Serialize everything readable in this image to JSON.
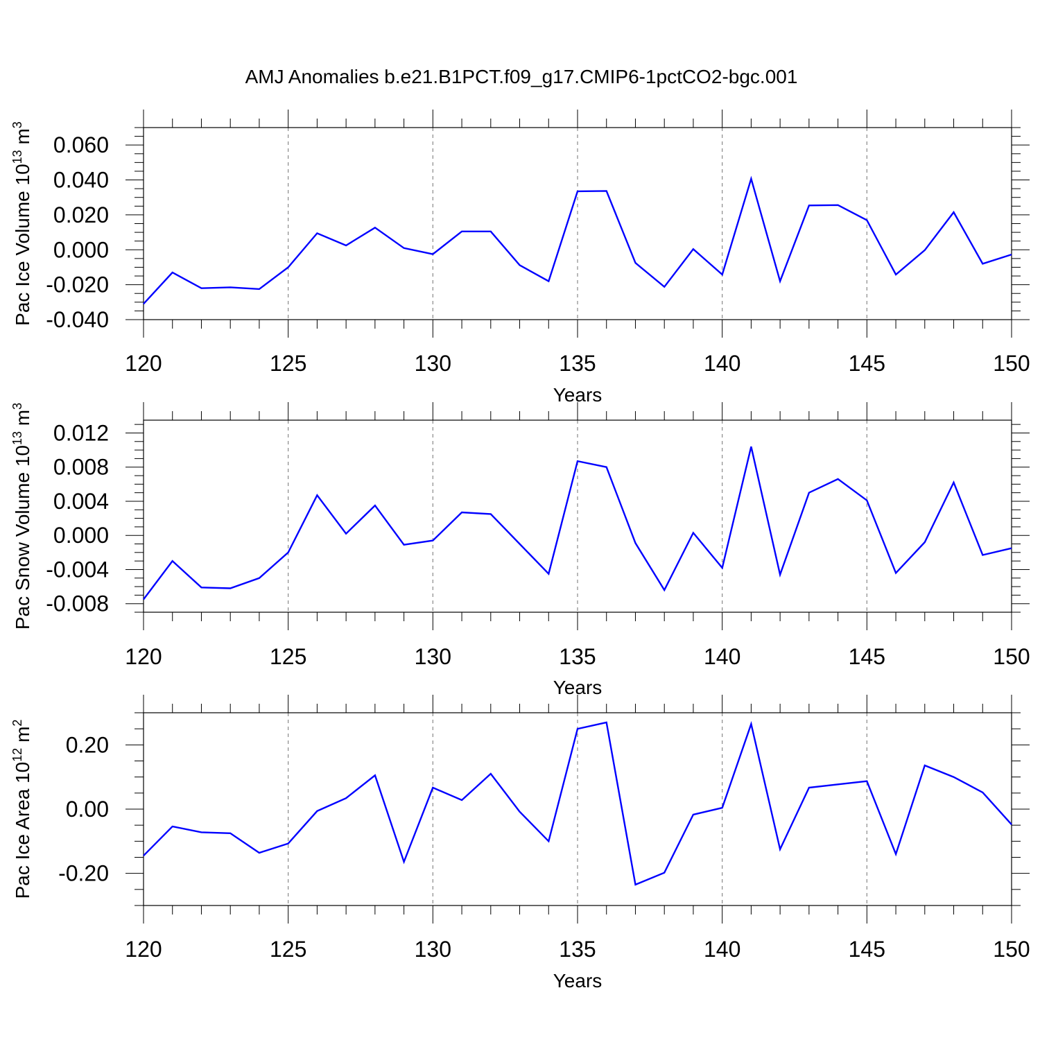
{
  "figure": {
    "title": "AMJ Anomalies b.e21.B1PCT.f09_g17.CMIP6-1pctCO2-bgc.001",
    "line_color": "#0000ff"
  },
  "chart_data": [
    {
      "type": "line",
      "xlabel": "Years",
      "ylabel": "Pac Ice Volume 10",
      "ylabel_sup": "13",
      "ylabel_unit": " m",
      "ylabel_unit_sup": "3",
      "xlim": [
        120,
        150
      ],
      "ylim": [
        -0.04,
        0.07
      ],
      "xticks": [
        120,
        125,
        130,
        135,
        140,
        145,
        150
      ],
      "xtick_labels": [
        "120",
        "125",
        "130",
        "135",
        "140",
        "145",
        "150"
      ],
      "yticks": [
        -0.04,
        -0.02,
        0.0,
        0.02,
        0.04,
        0.06
      ],
      "ytick_labels": [
        "-0.040",
        "-0.020",
        "0.000",
        "0.020",
        "0.040",
        "0.060"
      ],
      "yminor_step": 0.005,
      "grid": "x-dashed",
      "x": [
        120,
        121,
        122,
        123,
        124,
        125,
        126,
        127,
        128,
        129,
        130,
        131,
        132,
        133,
        134,
        135,
        136,
        137,
        138,
        139,
        140,
        141,
        142,
        143,
        144,
        145,
        146,
        147,
        148,
        149,
        150
      ],
      "y": [
        -0.031,
        -0.013,
        -0.022,
        -0.0215,
        -0.0225,
        -0.01,
        0.0095,
        0.0025,
        0.0127,
        0.001,
        -0.0025,
        0.0105,
        0.0105,
        -0.0088,
        -0.018,
        0.0335,
        0.0337,
        -0.0075,
        -0.0212,
        0.0004,
        -0.0142,
        0.0407,
        -0.018,
        0.0254,
        0.0256,
        0.017,
        -0.0142,
        -0.0002,
        0.0215,
        -0.008,
        -0.0027
      ]
    },
    {
      "type": "line",
      "xlabel": "Years",
      "ylabel": "Pac Snow Volume 10",
      "ylabel_sup": "13",
      "ylabel_unit": " m",
      "ylabel_unit_sup": "3",
      "xlim": [
        120,
        150
      ],
      "ylim": [
        -0.009,
        0.0135
      ],
      "xticks": [
        120,
        125,
        130,
        135,
        140,
        145,
        150
      ],
      "xtick_labels": [
        "120",
        "125",
        "130",
        "135",
        "140",
        "145",
        "150"
      ],
      "yticks": [
        -0.008,
        -0.004,
        0.0,
        0.004,
        0.008,
        0.012
      ],
      "ytick_labels": [
        "-0.008",
        "-0.004",
        "0.000",
        "0.004",
        "0.008",
        "0.012"
      ],
      "yminor_step": 0.001,
      "grid": "x-dashed",
      "x": [
        120,
        121,
        122,
        123,
        124,
        125,
        126,
        127,
        128,
        129,
        130,
        131,
        132,
        133,
        134,
        135,
        136,
        137,
        138,
        139,
        140,
        141,
        142,
        143,
        144,
        145,
        146,
        147,
        148,
        149,
        150
      ],
      "y": [
        -0.0075,
        -0.003,
        -0.0061,
        -0.0062,
        -0.005,
        -0.002,
        0.0047,
        0.0002,
        0.0035,
        -0.0011,
        -0.0006,
        0.0027,
        0.0025,
        -0.001,
        -0.0045,
        0.0087,
        0.008,
        -0.0009,
        -0.0064,
        0.0003,
        -0.0038,
        0.0104,
        -0.0046,
        0.005,
        0.0066,
        0.0041,
        -0.0044,
        -0.0008,
        0.0062,
        -0.0023,
        -0.0015
      ]
    },
    {
      "type": "line",
      "xlabel": "Years",
      "ylabel": "Pac Ice Area 10",
      "ylabel_sup": "12",
      "ylabel_unit": " m",
      "ylabel_unit_sup": "2",
      "xlim": [
        120,
        150
      ],
      "ylim": [
        -0.3,
        0.3
      ],
      "xticks": [
        120,
        125,
        130,
        135,
        140,
        145,
        150
      ],
      "xtick_labels": [
        "120",
        "125",
        "130",
        "135",
        "140",
        "145",
        "150"
      ],
      "yticks": [
        -0.2,
        0.0,
        0.2
      ],
      "ytick_labels": [
        "-0.20",
        "0.00",
        "0.20"
      ],
      "yminor_step": 0.05,
      "grid": "x-dashed",
      "x": [
        120,
        121,
        122,
        123,
        124,
        125,
        126,
        127,
        128,
        129,
        130,
        131,
        132,
        133,
        134,
        135,
        136,
        137,
        138,
        139,
        140,
        141,
        142,
        143,
        144,
        145,
        146,
        147,
        148,
        149,
        150
      ],
      "y": [
        -0.145,
        -0.054,
        -0.072,
        -0.075,
        -0.136,
        -0.107,
        -0.006,
        0.034,
        0.105,
        -0.164,
        0.067,
        0.028,
        0.11,
        -0.008,
        -0.1,
        0.25,
        0.27,
        -0.235,
        -0.198,
        -0.017,
        0.004,
        0.265,
        -0.125,
        0.067,
        0.077,
        0.087,
        -0.14,
        0.136,
        0.1,
        0.052,
        -0.048
      ]
    }
  ]
}
